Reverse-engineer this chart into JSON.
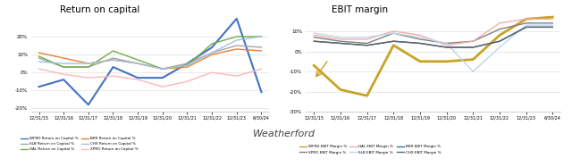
{
  "left_title": "Return on capital",
  "right_title": "EBIT margin",
  "watermark": "Weatherford",
  "x_labels": [
    "12/31/15",
    "12/31/16",
    "12/31/17",
    "12/31/18",
    "12/31/19",
    "12/31/20",
    "12/31/21",
    "12/31/22",
    "12/31/23",
    "6/30/24"
  ],
  "x_vals": [
    0,
    1,
    2,
    3,
    4,
    5,
    6,
    7,
    8,
    9
  ],
  "left_series": [
    {
      "name": "WFRD Return on Capital %",
      "color": "#4472C4",
      "lw": 1.5,
      "values": [
        -8,
        -4,
        -18,
        3,
        -3,
        -3,
        5,
        14,
        30,
        -11
      ]
    },
    {
      "name": "SLB Return on Capital %",
      "color": "#A5A5A5",
      "lw": 1.0,
      "values": [
        8,
        3,
        3,
        8,
        5,
        2,
        5,
        11,
        15,
        14
      ]
    },
    {
      "name": "HAL Return on Capital %",
      "color": "#70AD47",
      "lw": 1.0,
      "values": [
        9,
        3,
        3,
        12,
        7,
        2,
        4,
        16,
        20,
        20
      ]
    },
    {
      "name": "BKR Return on Capital %",
      "color": "#ED7D31",
      "lw": 1.0,
      "values": [
        11,
        8,
        5,
        7,
        5,
        2,
        3,
        10,
        13,
        12
      ]
    },
    {
      "name": "CHX Return on Capital %",
      "color": "#9DC3E6",
      "lw": 1.0,
      "values": [
        6,
        5,
        5,
        7,
        5,
        2,
        4,
        11,
        18,
        20
      ]
    },
    {
      "name": "XPRO Return on Capital %",
      "color": "#FFB6B6",
      "lw": 1.0,
      "values": [
        2,
        -1,
        -3,
        -2,
        -4,
        -8,
        -5,
        0,
        -2,
        2
      ]
    }
  ],
  "right_series": [
    {
      "name": "WFRD EBIT Margin %",
      "color": "#C9A227",
      "lw": 2.0,
      "values": [
        -7,
        -19,
        -22,
        3,
        -5,
        -5,
        -4,
        8,
        16,
        17
      ]
    },
    {
      "name": "XPRO EBIT Margin %",
      "color": "#808080",
      "lw": 1.0,
      "values": [
        7,
        5,
        4,
        9,
        6,
        4,
        5,
        11,
        14,
        14
      ]
    },
    {
      "name": "HAL EBIT Margin %",
      "color": "#F4ACAC",
      "lw": 1.0,
      "values": [
        8,
        6,
        6,
        10,
        8,
        3,
        5,
        14,
        16,
        16
      ]
    },
    {
      "name": "SLB EBIT Margin %",
      "color": "#BDD7EE",
      "lw": 1.0,
      "values": [
        9,
        7,
        7,
        9,
        7,
        4,
        -10,
        2,
        13,
        13
      ]
    },
    {
      "name": "BKR EBIT Margin %",
      "color": "#2E75B6",
      "lw": 1.0,
      "values": [
        5,
        4,
        3,
        5,
        4,
        2,
        2,
        5,
        12,
        12
      ]
    },
    {
      "name": "CHX EBIT Margin %",
      "color": "#636363",
      "lw": 1.0,
      "values": [
        5,
        4,
        3,
        5,
        4,
        2,
        2,
        5,
        12,
        12
      ]
    }
  ],
  "left_ylim": [
    -22,
    32
  ],
  "right_ylim": [
    -30,
    18
  ],
  "left_yticks": [
    -20,
    -10,
    0,
    10,
    20
  ],
  "right_yticks": [
    -30,
    -20,
    -10,
    0,
    10
  ],
  "bg_color": "#FFFFFF",
  "plot_bg": "#FFFFFF",
  "grid_color": "#E0E0E0"
}
